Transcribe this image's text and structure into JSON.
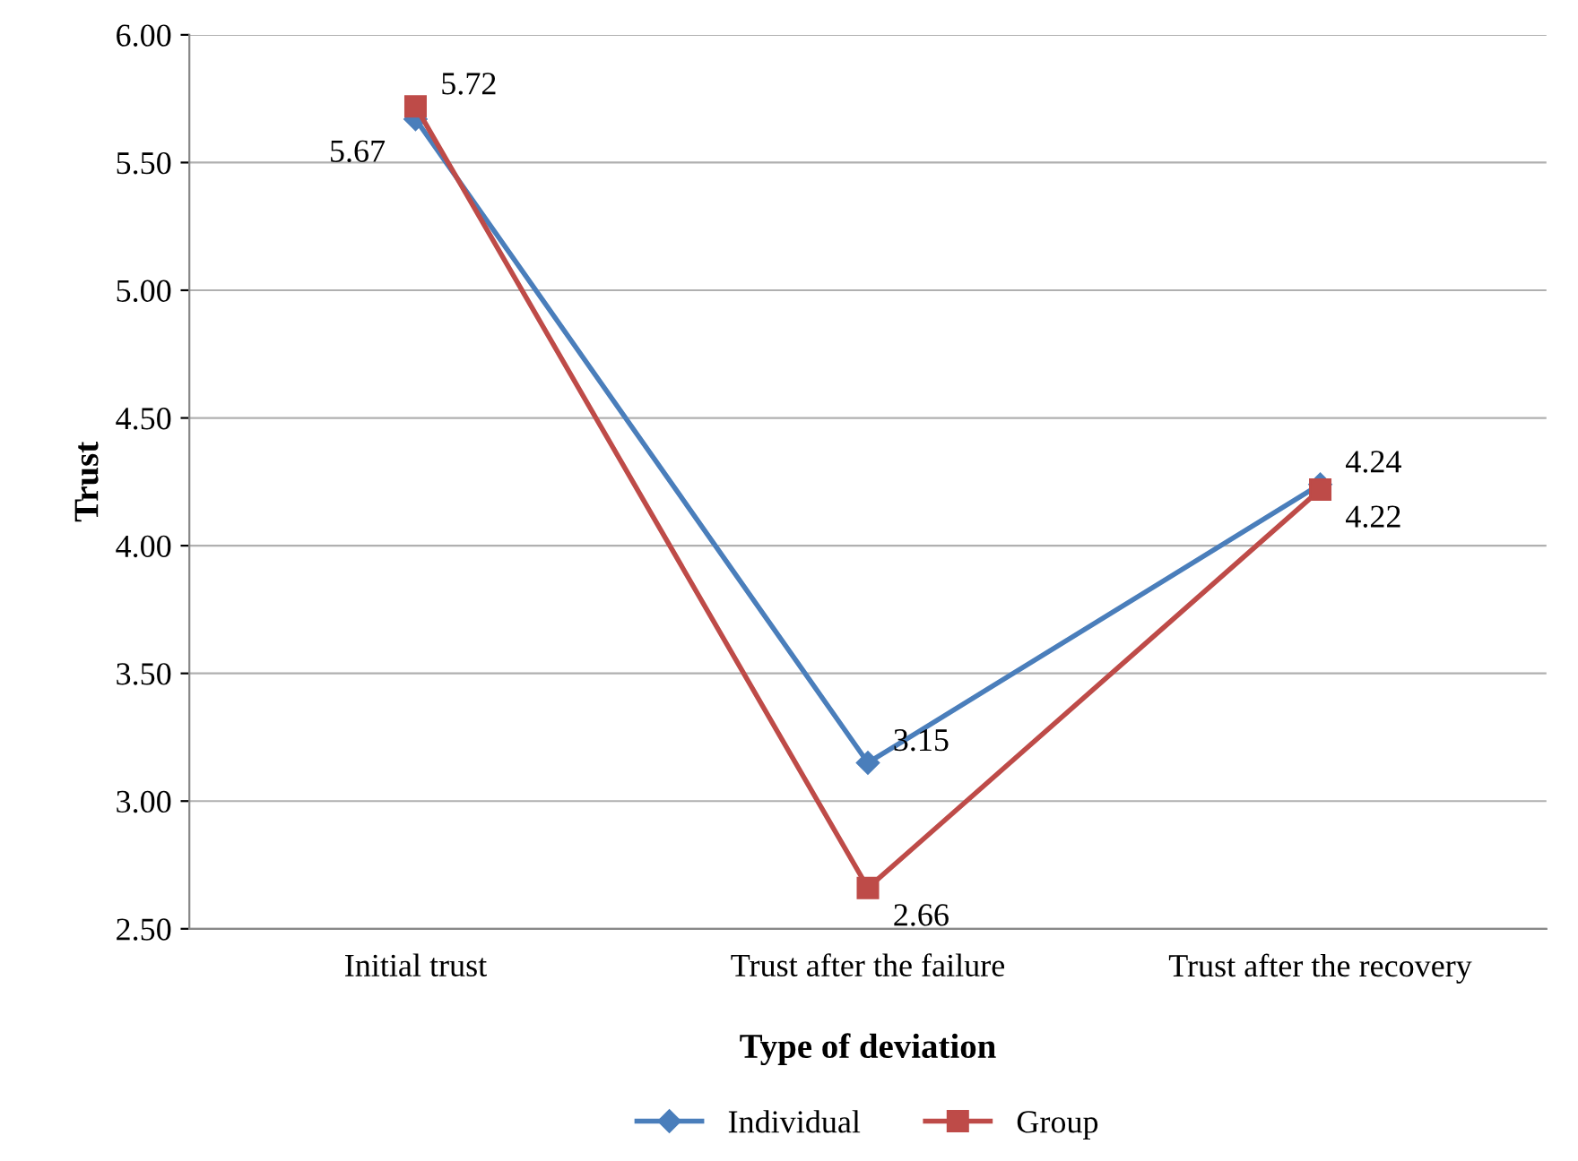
{
  "chart_data": {
    "type": "line",
    "xlabel": "Type of deviation",
    "ylabel": "Trust",
    "categories": [
      "Initial trust",
      "Trust after the failure",
      "Trust after the recovery"
    ],
    "series": [
      {
        "name": "Individual",
        "color": "#4a7ebb",
        "marker": "diamond",
        "values": [
          5.67,
          3.15,
          4.24
        ]
      },
      {
        "name": "Group",
        "color": "#be4b48",
        "marker": "square",
        "values": [
          5.72,
          2.66,
          4.22
        ]
      }
    ],
    "ylim": [
      2.5,
      6.0
    ],
    "yticks": [
      {
        "value": 2.5,
        "label": "2.50"
      },
      {
        "value": 3.0,
        "label": "3.00"
      },
      {
        "value": 3.5,
        "label": "3.50"
      },
      {
        "value": 4.0,
        "label": "4.00"
      },
      {
        "value": 4.5,
        "label": "4.50"
      },
      {
        "value": 5.0,
        "label": "5.00"
      },
      {
        "value": 5.5,
        "label": "5.50"
      },
      {
        "value": 6.0,
        "label": "6.00"
      }
    ],
    "grid": "y",
    "legend": "bottom",
    "data_labels": true,
    "line_style": "solid"
  }
}
